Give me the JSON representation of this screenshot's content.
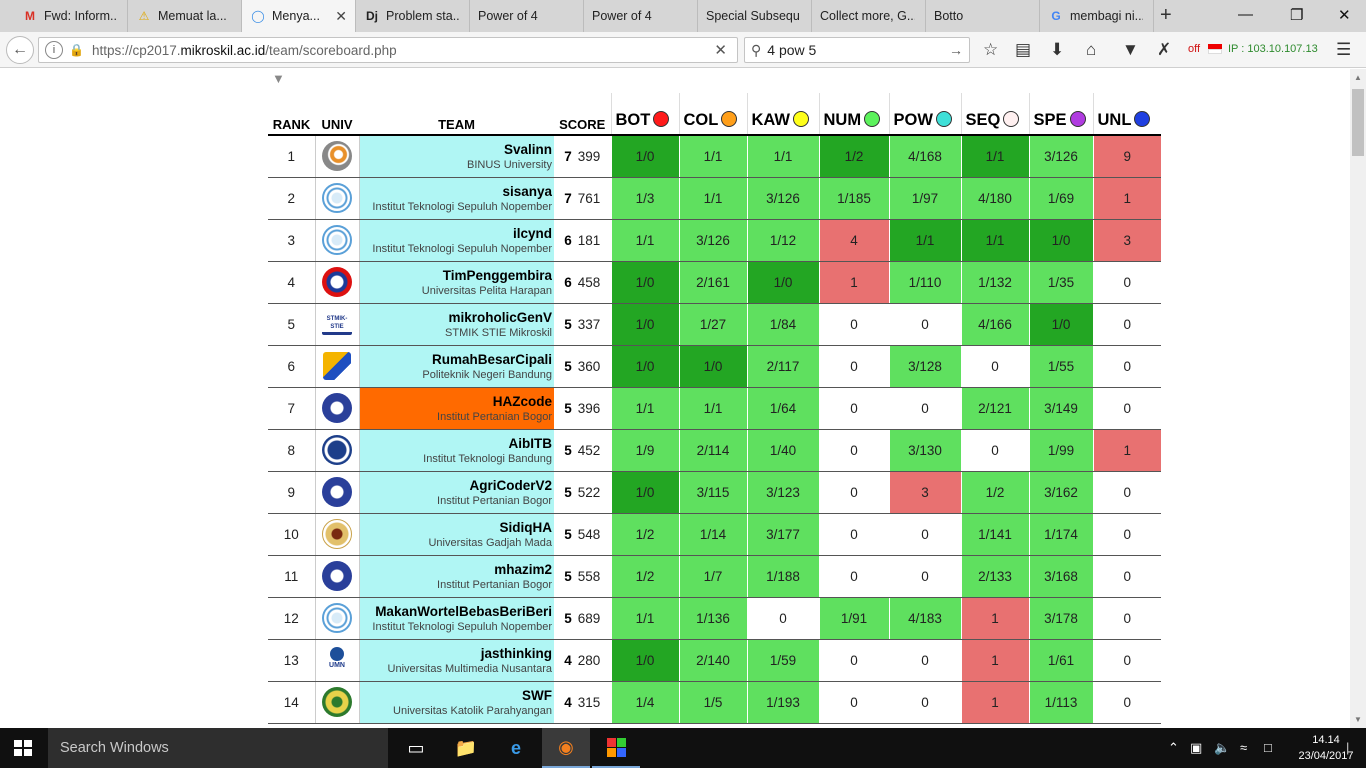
{
  "browser": {
    "tabs": [
      {
        "label": "Fwd: Inform...",
        "icon": "M",
        "active": false
      },
      {
        "label": "Memuat la...",
        "icon": "warning",
        "active": false
      },
      {
        "label": "Menya...",
        "icon": "loading",
        "active": true
      },
      {
        "label": "Problem sta...",
        "icon": "Dj",
        "active": false
      },
      {
        "label": "Power of 4",
        "icon": "",
        "active": false
      },
      {
        "label": "Power of 4",
        "icon": "",
        "active": false
      },
      {
        "label": "Special Subsequ...",
        "icon": "",
        "active": false
      },
      {
        "label": "Collect more, G...",
        "icon": "",
        "active": false
      },
      {
        "label": "Botto",
        "icon": "",
        "active": false
      },
      {
        "label": "membagi ni...",
        "icon": "G",
        "active": false
      }
    ],
    "url_prefix": "https://cp2017.",
    "url_domain": "mikroskil.ac.id",
    "url_path": "/team/scoreboard.php",
    "search_value": "4 pow 5",
    "off_label": "off",
    "ip_label": "IP : 103.10.107.13"
  },
  "scoreboard": {
    "headers": {
      "rank": "RANK",
      "univ": "UNIV",
      "team": "TEAM",
      "score": "SCORE"
    },
    "problems": [
      {
        "code": "BOT",
        "color": "#ff1a1a"
      },
      {
        "code": "COL",
        "color": "#ff9f1a"
      },
      {
        "code": "KAW",
        "color": "#ffff1a"
      },
      {
        "code": "NUM",
        "color": "#5cf25c"
      },
      {
        "code": "POW",
        "color": "#3fe0d8"
      },
      {
        "code": "SEQ",
        "color": "#fff0f0"
      },
      {
        "code": "SPE",
        "color": "#b03ce0"
      },
      {
        "code": "UNL",
        "color": "#1f3fe0"
      }
    ],
    "rows": [
      {
        "rank": "1",
        "team": "Svalinn",
        "univ": "BINUS University",
        "logo": "binus",
        "solved": "7",
        "time": "399",
        "cells": [
          [
            "1/0",
            "dg"
          ],
          [
            "1/1",
            "g"
          ],
          [
            "1/1",
            "g"
          ],
          [
            "1/2",
            "dg"
          ],
          [
            "4/168",
            "g"
          ],
          [
            "1/1",
            "dg"
          ],
          [
            "3/126",
            "g"
          ],
          [
            "9",
            "r"
          ]
        ]
      },
      {
        "rank": "2",
        "team": "sisanya",
        "univ": "Institut Teknologi Sepuluh Nopember",
        "logo": "its",
        "solved": "7",
        "time": "761",
        "cells": [
          [
            "1/3",
            "g"
          ],
          [
            "1/1",
            "g"
          ],
          [
            "3/126",
            "g"
          ],
          [
            "1/185",
            "g"
          ],
          [
            "1/97",
            "g"
          ],
          [
            "4/180",
            "g"
          ],
          [
            "1/69",
            "g"
          ],
          [
            "1",
            "r"
          ]
        ]
      },
      {
        "rank": "3",
        "team": "ilcynd",
        "univ": "Institut Teknologi Sepuluh Nopember",
        "logo": "its",
        "solved": "6",
        "time": "181",
        "cells": [
          [
            "1/1",
            "g"
          ],
          [
            "3/126",
            "g"
          ],
          [
            "1/12",
            "g"
          ],
          [
            "4",
            "r"
          ],
          [
            "1/1",
            "dg"
          ],
          [
            "1/1",
            "dg"
          ],
          [
            "1/0",
            "dg"
          ],
          [
            "3",
            "r"
          ]
        ]
      },
      {
        "rank": "4",
        "team": "TimPenggembira",
        "univ": "Universitas Pelita Harapan",
        "logo": "uph",
        "solved": "6",
        "time": "458",
        "cells": [
          [
            "1/0",
            "dg"
          ],
          [
            "2/161",
            "g"
          ],
          [
            "1/0",
            "dg"
          ],
          [
            "1",
            "r"
          ],
          [
            "1/110",
            "g"
          ],
          [
            "1/132",
            "g"
          ],
          [
            "1/35",
            "g"
          ],
          [
            "0",
            "n"
          ]
        ]
      },
      {
        "rank": "5",
        "team": "mikroholicGenV",
        "univ": "STMIK STIE Mikroskil",
        "logo": "stmik",
        "solved": "5",
        "time": "337",
        "cells": [
          [
            "1/0",
            "dg"
          ],
          [
            "1/27",
            "g"
          ],
          [
            "1/84",
            "g"
          ],
          [
            "0",
            "n"
          ],
          [
            "0",
            "n"
          ],
          [
            "4/166",
            "g"
          ],
          [
            "1/0",
            "dg"
          ],
          [
            "0",
            "n"
          ]
        ]
      },
      {
        "rank": "6",
        "team": "RumahBesarCipali",
        "univ": "Politeknik Negeri Bandung",
        "logo": "polban",
        "solved": "5",
        "time": "360",
        "cells": [
          [
            "1/0",
            "dg"
          ],
          [
            "1/0",
            "dg"
          ],
          [
            "2/117",
            "g"
          ],
          [
            "0",
            "n"
          ],
          [
            "3/128",
            "g"
          ],
          [
            "0",
            "n"
          ],
          [
            "1/55",
            "g"
          ],
          [
            "0",
            "n"
          ]
        ]
      },
      {
        "rank": "7",
        "team": "HAZcode",
        "univ": "Institut Pertanian Bogor",
        "logo": "ipb",
        "solved": "5",
        "time": "396",
        "highlight": true,
        "cells": [
          [
            "1/1",
            "g"
          ],
          [
            "1/1",
            "g"
          ],
          [
            "1/64",
            "g"
          ],
          [
            "0",
            "n"
          ],
          [
            "0",
            "n"
          ],
          [
            "2/121",
            "g"
          ],
          [
            "3/149",
            "g"
          ],
          [
            "0",
            "n"
          ]
        ]
      },
      {
        "rank": "8",
        "team": "AibITB",
        "univ": "Institut Teknologi Bandung",
        "logo": "itb",
        "solved": "5",
        "time": "452",
        "cells": [
          [
            "1/9",
            "g"
          ],
          [
            "2/114",
            "g"
          ],
          [
            "1/40",
            "g"
          ],
          [
            "0",
            "n"
          ],
          [
            "3/130",
            "g"
          ],
          [
            "0",
            "n"
          ],
          [
            "1/99",
            "g"
          ],
          [
            "1",
            "r"
          ]
        ]
      },
      {
        "rank": "9",
        "team": "AgriCoderV2",
        "univ": "Institut Pertanian Bogor",
        "logo": "ipb",
        "solved": "5",
        "time": "522",
        "cells": [
          [
            "1/0",
            "dg"
          ],
          [
            "3/115",
            "g"
          ],
          [
            "3/123",
            "g"
          ],
          [
            "0",
            "n"
          ],
          [
            "3",
            "r"
          ],
          [
            "1/2",
            "g"
          ],
          [
            "3/162",
            "g"
          ],
          [
            "0",
            "n"
          ]
        ]
      },
      {
        "rank": "10",
        "team": "SidiqHA",
        "univ": "Universitas Gadjah Mada",
        "logo": "ugm",
        "solved": "5",
        "time": "548",
        "cells": [
          [
            "1/2",
            "g"
          ],
          [
            "1/14",
            "g"
          ],
          [
            "3/177",
            "g"
          ],
          [
            "0",
            "n"
          ],
          [
            "0",
            "n"
          ],
          [
            "1/141",
            "g"
          ],
          [
            "1/174",
            "g"
          ],
          [
            "0",
            "n"
          ]
        ]
      },
      {
        "rank": "11",
        "team": "mhazim2",
        "univ": "Institut Pertanian Bogor",
        "logo": "ipb",
        "solved": "5",
        "time": "558",
        "cells": [
          [
            "1/2",
            "g"
          ],
          [
            "1/7",
            "g"
          ],
          [
            "1/188",
            "g"
          ],
          [
            "0",
            "n"
          ],
          [
            "0",
            "n"
          ],
          [
            "2/133",
            "g"
          ],
          [
            "3/168",
            "g"
          ],
          [
            "0",
            "n"
          ]
        ]
      },
      {
        "rank": "12",
        "team": "MakanWortelBebasBeriBeri",
        "univ": "Institut Teknologi Sepuluh Nopember",
        "logo": "its",
        "solved": "5",
        "time": "689",
        "cells": [
          [
            "1/1",
            "g"
          ],
          [
            "1/136",
            "g"
          ],
          [
            "0",
            "n"
          ],
          [
            "1/91",
            "g"
          ],
          [
            "4/183",
            "g"
          ],
          [
            "1",
            "r"
          ],
          [
            "3/178",
            "g"
          ],
          [
            "0",
            "n"
          ]
        ]
      },
      {
        "rank": "13",
        "team": "jasthinking",
        "univ": "Universitas Multimedia Nusantara",
        "logo": "umn",
        "solved": "4",
        "time": "280",
        "cells": [
          [
            "1/0",
            "dg"
          ],
          [
            "2/140",
            "g"
          ],
          [
            "1/59",
            "g"
          ],
          [
            "0",
            "n"
          ],
          [
            "0",
            "n"
          ],
          [
            "1",
            "r"
          ],
          [
            "1/61",
            "g"
          ],
          [
            "0",
            "n"
          ]
        ]
      },
      {
        "rank": "14",
        "team": "SWF",
        "univ": "Universitas Katolik Parahyangan",
        "logo": "unpar",
        "solved": "4",
        "time": "315",
        "cells": [
          [
            "1/4",
            "g"
          ],
          [
            "1/5",
            "g"
          ],
          [
            "1/193",
            "g"
          ],
          [
            "0",
            "n"
          ],
          [
            "0",
            "n"
          ],
          [
            "1",
            "r"
          ],
          [
            "1/113",
            "g"
          ],
          [
            "0",
            "n"
          ]
        ]
      }
    ]
  },
  "taskbar": {
    "search_placeholder": "Search Windows",
    "time": "14.14",
    "date": "23/04/2017"
  }
}
